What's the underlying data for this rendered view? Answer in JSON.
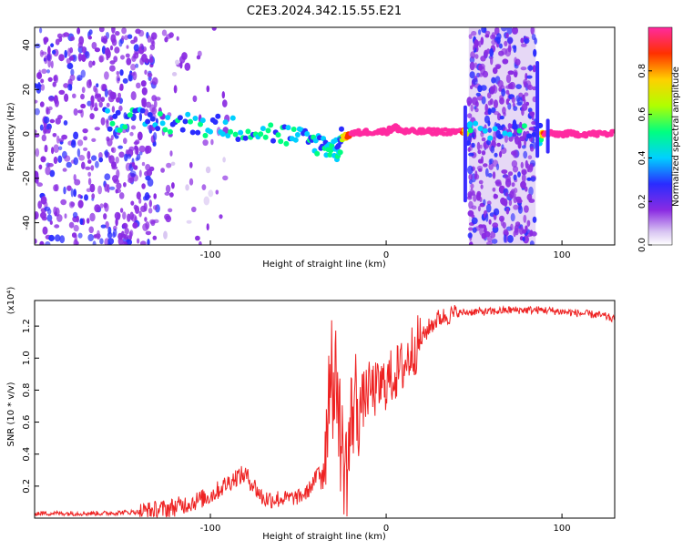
{
  "title": "C2E3.2024.342.15.55.E21",
  "chart_data": [
    {
      "type": "heatmap",
      "xlabel": "Height of straight line (km)",
      "ylabel": "Frequency (Hz)",
      "xlim": [
        -200,
        130
      ],
      "ylim": [
        -50,
        48
      ],
      "xticks": [
        -100,
        0,
        100
      ],
      "xtick_labels": [
        "-100",
        "0",
        "100"
      ],
      "yticks": [
        40,
        20,
        0,
        -20,
        -40
      ],
      "ytick_labels": [
        "40",
        "20",
        "0",
        "-20",
        "-40"
      ],
      "colorbar": {
        "label": "Normalized spectral amplitude",
        "range": [
          0.0,
          1.0
        ],
        "ticks": [
          0.0,
          0.2,
          0.4,
          0.6,
          0.8
        ],
        "tick_labels": [
          "0.0",
          "0.2",
          "0.4",
          "0.6",
          "0.8"
        ]
      },
      "ridge": {
        "x": [
          -160,
          -140,
          -120,
          -100,
          -80,
          -60,
          -45,
          -35,
          -28,
          -25,
          -20,
          -10,
          0,
          5,
          10,
          20,
          30,
          43,
          48,
          87,
          90,
          100,
          110,
          120,
          130
        ],
        "y": [
          7,
          6,
          5,
          4,
          2,
          0,
          -3,
          -5,
          -7,
          -2,
          0,
          1,
          1,
          3,
          1,
          1,
          1,
          1,
          0,
          0,
          0,
          0,
          0,
          0,
          0
        ],
        "amplitude": [
          0.35,
          0.4,
          0.45,
          0.45,
          0.45,
          0.45,
          0.45,
          0.4,
          0.4,
          0.6,
          0.9,
          0.95,
          0.9,
          0.9,
          0.95,
          0.95,
          0.95,
          0.9,
          0.4,
          0.4,
          0.9,
          0.95,
          0.95,
          0.95,
          0.95
        ]
      }
    },
    {
      "type": "line",
      "xlabel": "Height of straight line (km)",
      "ylabel": "SNR (10 * v/v)",
      "multiplier": "(x10⁴)",
      "xlim": [
        -200,
        130
      ],
      "ylim": [
        0.0,
        1.36
      ],
      "xticks": [
        -100,
        0,
        100
      ],
      "xtick_labels": [
        "-100",
        "0",
        "100"
      ],
      "yticks": [
        0.2,
        0.4,
        0.6,
        0.8,
        1.0,
        1.2
      ],
      "ytick_labels": [
        "0.2",
        "0.4",
        "0.6",
        "0.8",
        "1.0",
        "1.2"
      ],
      "series": [
        {
          "color": "#ee2222",
          "x": [
            -200,
            -180,
            -160,
            -140,
            -130,
            -120,
            -110,
            -100,
            -95,
            -90,
            -85,
            -80,
            -75,
            -70,
            -60,
            -50,
            -45,
            -40,
            -35,
            -33,
            -31,
            -30,
            -28,
            -26,
            -24,
            -22,
            -20,
            -18,
            -15,
            -10,
            -5,
            0,
            5,
            10,
            15,
            20,
            25,
            30,
            40,
            50,
            60,
            70,
            80,
            90,
            100,
            110,
            120,
            125,
            130
          ],
          "y": [
            0.03,
            0.03,
            0.03,
            0.04,
            0.05,
            0.07,
            0.1,
            0.14,
            0.18,
            0.22,
            0.26,
            0.27,
            0.2,
            0.12,
            0.12,
            0.13,
            0.16,
            0.25,
            0.4,
            0.75,
            1.1,
            0.7,
            0.9,
            0.5,
            0.35,
            0.3,
            0.6,
            0.75,
            0.7,
            0.8,
            0.8,
            0.85,
            0.9,
            0.95,
            1.05,
            1.12,
            1.2,
            1.25,
            1.28,
            1.29,
            1.29,
            1.3,
            1.3,
            1.3,
            1.29,
            1.28,
            1.27,
            1.26,
            1.24
          ]
        }
      ]
    }
  ]
}
